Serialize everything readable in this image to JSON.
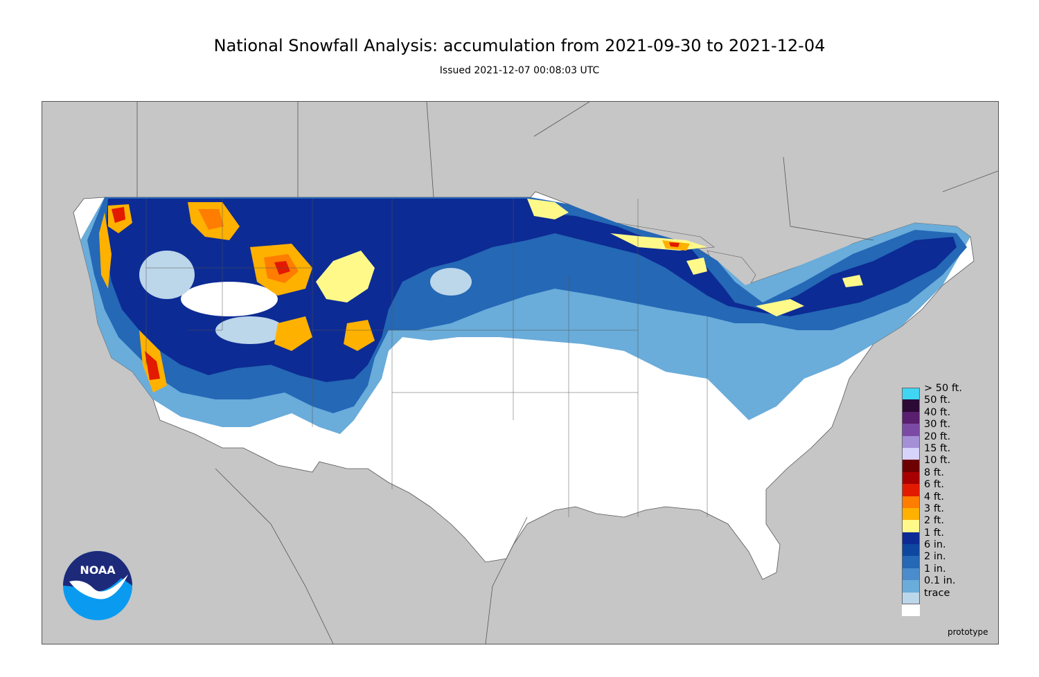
{
  "header": {
    "title": "National Snowfall Analysis: accumulation from 2021-09-30 to 2021-12-04",
    "subtitle": "Issued 2021-12-07 00:08:03 UTC"
  },
  "logo": {
    "text": "NOAA",
    "icon": "noaa-logo-icon"
  },
  "footer": {
    "note": "prototype"
  },
  "colors": {
    "land_outside": "#c6c6c6",
    "trace": "#ffffff",
    "water_outline": "#555555"
  },
  "legend": [
    {
      "label": "> 50 ft.",
      "color": "#3fd5f3"
    },
    {
      "label": "50 ft.",
      "color": "#2b0a35"
    },
    {
      "label": "40 ft.",
      "color": "#5a1f6e"
    },
    {
      "label": "30 ft.",
      "color": "#7b4aa5"
    },
    {
      "label": "20 ft.",
      "color": "#a58fd6"
    },
    {
      "label": "15 ft.",
      "color": "#d8d3fb"
    },
    {
      "label": "10 ft.",
      "color": "#6d0000"
    },
    {
      "label": "8 ft.",
      "color": "#a80000"
    },
    {
      "label": "6 ft.",
      "color": "#e21a00"
    },
    {
      "label": "4 ft.",
      "color": "#ff7d00"
    },
    {
      "label": "3 ft.",
      "color": "#ffb100"
    },
    {
      "label": "2 ft.",
      "color": "#fff98a"
    },
    {
      "label": "1 ft.",
      "color": "#0d2b94"
    },
    {
      "label": "6 in.",
      "color": "#0e47a0"
    },
    {
      "label": "2 in.",
      "color": "#2468b6"
    },
    {
      "label": "1 in.",
      "color": "#4a8ccc"
    },
    {
      "label": "0.1 in.",
      "color": "#6aacda"
    },
    {
      "label": "trace",
      "color": "#bcd6ea"
    },
    {
      "label": "",
      "color": "#ffffff"
    }
  ]
}
